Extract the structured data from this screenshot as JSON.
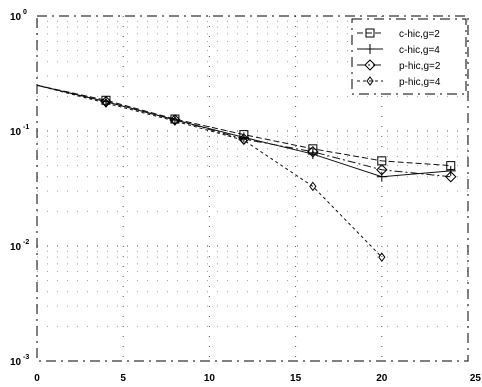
{
  "chart_data": {
    "type": "line",
    "title": "",
    "xlabel": "",
    "ylabel": "",
    "xlim": [
      0,
      25
    ],
    "ylim": [
      0.001,
      1
    ],
    "yscale": "log",
    "grid": true,
    "legend_position": "top-right",
    "x_ticks": [
      "0",
      "5",
      "10",
      "15",
      "20",
      "25"
    ],
    "y_ticks": [
      {
        "value": 0.001,
        "base": "10",
        "exp": "-3"
      },
      {
        "value": 0.01,
        "base": "10",
        "exp": "-2"
      },
      {
        "value": 0.1,
        "base": "10",
        "exp": "-1"
      },
      {
        "value": 1,
        "base": "10",
        "exp": "0"
      }
    ],
    "series": [
      {
        "name": "c-hic,g=2",
        "marker": "square",
        "dash": "6 3",
        "x": [
          0,
          4,
          8,
          12,
          16,
          20,
          24
        ],
        "y": [
          0.25,
          0.185,
          0.127,
          0.093,
          0.07,
          0.055,
          0.05
        ]
      },
      {
        "name": "c-hic,g=4",
        "marker": "plus",
        "dash": "",
        "x": [
          0,
          4,
          8,
          12,
          16,
          20,
          24
        ],
        "y": [
          0.25,
          0.18,
          0.125,
          0.088,
          0.063,
          0.04,
          0.045
        ]
      },
      {
        "name": "p-hic,g=2",
        "marker": "diamond",
        "dash": "8 3 2 3",
        "x": [
          0,
          4,
          8,
          12,
          16,
          20,
          24
        ],
        "y": [
          0.25,
          0.18,
          0.125,
          0.085,
          0.066,
          0.046,
          0.04
        ]
      },
      {
        "name": "p-hic,g=4",
        "marker": "diamond-small",
        "dash": "3 3",
        "x": [
          0,
          4,
          8,
          12,
          16,
          20
        ],
        "y": [
          0.25,
          0.175,
          0.122,
          0.083,
          0.033,
          0.008
        ]
      }
    ]
  }
}
